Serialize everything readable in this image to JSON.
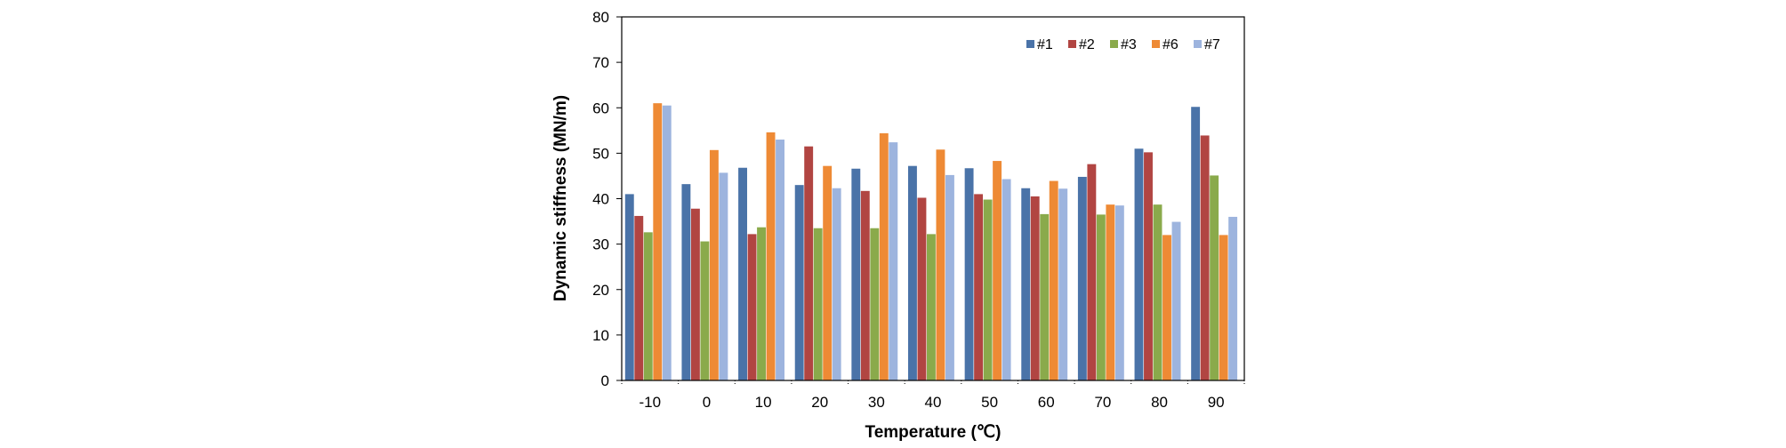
{
  "chart_data": {
    "type": "bar",
    "title": "",
    "xlabel": "Temperature (℃)",
    "ylabel": "Dynamic stiffness (MN/m)",
    "ylim": [
      0,
      80
    ],
    "yticks": [
      "0",
      "10",
      "20",
      "30",
      "40",
      "50",
      "60",
      "70",
      "80"
    ],
    "categories": [
      "-10",
      "0",
      "10",
      "20",
      "30",
      "40",
      "50",
      "60",
      "70",
      "80",
      "90"
    ],
    "series": [
      {
        "name": "#1",
        "color": "#4a73a8",
        "values": [
          41,
          43.2,
          46.8,
          43,
          46.6,
          47.2,
          46.7,
          42.3,
          44.8,
          51,
          60.2
        ]
      },
      {
        "name": "#2",
        "color": "#b14542",
        "values": [
          36.2,
          37.8,
          32.2,
          51.5,
          41.7,
          40.2,
          41,
          40.5,
          47.6,
          50.2,
          53.9
        ]
      },
      {
        "name": "#3",
        "color": "#8aaa4b",
        "values": [
          32.6,
          30.6,
          33.7,
          33.5,
          33.5,
          32.2,
          39.8,
          36.6,
          36.5,
          38.7,
          45.1
        ]
      },
      {
        "name": "#6",
        "color": "#ee8a35",
        "values": [
          61,
          50.7,
          54.6,
          47.2,
          54.4,
          50.8,
          48.3,
          43.9,
          38.7,
          32,
          32
        ]
      },
      {
        "name": "#7",
        "color": "#9db4de",
        "values": [
          60.5,
          45.7,
          53,
          42.3,
          52.4,
          45.2,
          44.3,
          42.2,
          38.5,
          34.9,
          36
        ]
      }
    ],
    "legend_position": "top-right",
    "grid": false
  }
}
